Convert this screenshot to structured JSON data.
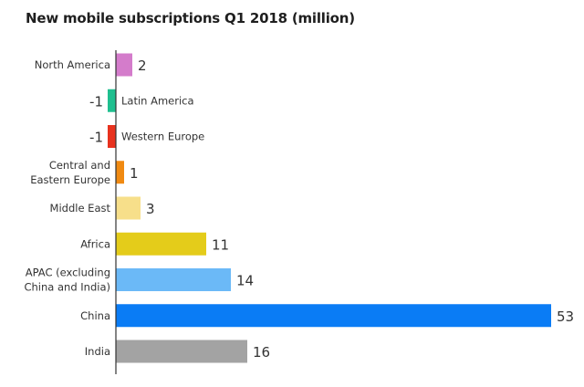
{
  "chart_data": {
    "type": "bar",
    "orientation": "horizontal",
    "title": "New mobile subscriptions Q1 2018 (million)",
    "xlabel": "",
    "ylabel": "",
    "categories": [
      "North America",
      "Latin America",
      "Western Europe",
      "Central and Eastern Europe",
      "Middle East",
      "Africa",
      "APAC (excluding China and India)",
      "China",
      "India"
    ],
    "category_lines": [
      [
        "North America"
      ],
      [
        "Latin America"
      ],
      [
        "Western Europe"
      ],
      [
        "Central and",
        "Eastern Europe"
      ],
      [
        "Middle East"
      ],
      [
        "Africa"
      ],
      [
        "APAC (excluding",
        "China and India)"
      ],
      [
        "China"
      ],
      [
        "India"
      ]
    ],
    "values": [
      2,
      -1,
      -1,
      1,
      3,
      11,
      14,
      53,
      16
    ],
    "value_labels": [
      "2",
      "-1",
      "-1",
      "1",
      "3",
      "11",
      "14",
      "53",
      "16"
    ],
    "colors": [
      "#d47ccb",
      "#1fbf8f",
      "#e8321e",
      "#f08a12",
      "#f7df8a",
      "#e4cc1a",
      "#6bb9f7",
      "#0a7cf5",
      "#a3a3a3"
    ],
    "xlim": [
      -1,
      53
    ],
    "grid": false,
    "legend": "none",
    "axis_color": "#333333"
  }
}
